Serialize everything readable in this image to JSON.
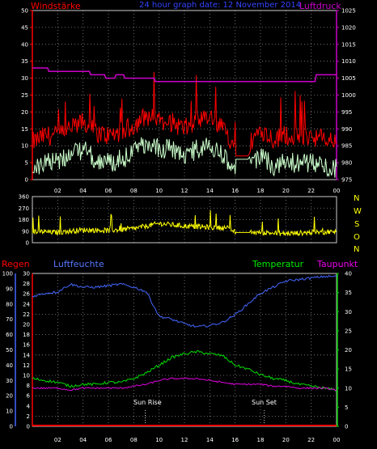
{
  "header": {
    "wind_label": "Windstärke",
    "title": "24 hour graph date: 12 November 2014",
    "pressure_label": "Luftdruck"
  },
  "bottom_labels": {
    "rain": "Regen",
    "humidity": "Luftfeuchte",
    "temperature": "Temperatur",
    "dewpoint": "Taupunkt"
  },
  "annotations": {
    "sunrise": "Sun Rise",
    "sunset": "Sun Set"
  },
  "compass": [
    "N",
    "W",
    "S",
    "O",
    "N"
  ],
  "colors": {
    "wind": "#ff0000",
    "gust": "#ccffcc",
    "pressure": "#cc00cc",
    "direction": "#ffff00",
    "rain": "#ff0000",
    "humidity": "#4466ff",
    "temperature": "#00dd00",
    "dewpoint": "#dd00dd",
    "grid": "#888888"
  },
  "chart_data": [
    {
      "type": "line",
      "name": "wind-pressure",
      "x_ticks": [
        "02",
        "04",
        "06",
        "08",
        "10",
        "12",
        "14",
        "16",
        "18",
        "20",
        "22",
        "00"
      ],
      "xlim": [
        0,
        24
      ],
      "y_left": {
        "label": "Windstärke",
        "ticks": [
          0,
          5,
          10,
          15,
          20,
          25,
          30,
          35,
          40,
          45,
          50
        ],
        "range": [
          0,
          50
        ]
      },
      "y_right": {
        "label": "Luftdruck",
        "ticks": [
          975,
          980,
          985,
          990,
          995,
          1000,
          1005,
          1010,
          1015,
          1020,
          1025
        ],
        "range": [
          975,
          1025
        ]
      },
      "series": [
        {
          "name": "Windstärke",
          "hours": [
            0,
            1,
            2,
            3,
            4,
            5,
            6,
            7,
            8,
            9,
            10,
            11,
            12,
            13,
            14,
            15,
            16,
            17,
            18,
            19,
            20,
            21,
            22,
            23,
            24
          ],
          "values": [
            8,
            10,
            10,
            12,
            14,
            11,
            10,
            11,
            13,
            16,
            14,
            14,
            12,
            14,
            15,
            12,
            7,
            7,
            12,
            9,
            10,
            10,
            10,
            9,
            8
          ]
        },
        {
          "name": "Luftdruck",
          "hours": [
            0,
            1.2,
            1.3,
            4.5,
            4.6,
            5.7,
            5.8,
            6.5,
            6.6,
            7.2,
            7.3,
            9.6,
            9.7,
            22.3,
            22.4,
            24
          ],
          "values": [
            1008,
            1008,
            1007,
            1007,
            1006,
            1006,
            1005,
            1005,
            1006,
            1006,
            1005,
            1005,
            1004,
            1004,
            1006,
            1006
          ]
        }
      ]
    },
    {
      "type": "line",
      "name": "wind-direction",
      "xlim": [
        0,
        24
      ],
      "y_left": {
        "ticks": [
          0,
          90,
          180,
          270,
          360
        ],
        "range": [
          0,
          360
        ]
      },
      "series": [
        {
          "name": "Windrichtung",
          "hours": [
            0,
            2,
            4,
            6,
            8,
            10,
            12,
            14,
            15.5,
            16,
            18,
            20,
            22,
            24
          ],
          "values": [
            90,
            80,
            100,
            95,
            110,
            150,
            130,
            120,
            115,
            80,
            80,
            70,
            80,
            85
          ]
        }
      ]
    },
    {
      "type": "line",
      "name": "temperature-humidity",
      "xlim": [
        0,
        24
      ],
      "y_humidity": {
        "label": "Luftfeuchte",
        "ticks": [
          0,
          10,
          20,
          30,
          40,
          50,
          60,
          70,
          80,
          90,
          100
        ],
        "range": [
          0,
          100
        ]
      },
      "y_rain": {
        "label": "Regen",
        "ticks": [
          0,
          2,
          4,
          6,
          8,
          10,
          12,
          14,
          16,
          18,
          20,
          22,
          24,
          26,
          28,
          30
        ],
        "range": [
          0,
          30
        ]
      },
      "y_temp": {
        "label": "Temperatur",
        "ticks": [
          0,
          5,
          10,
          15,
          20,
          25,
          30,
          35,
          40
        ],
        "range": [
          0,
          40
        ]
      },
      "series": [
        {
          "name": "Luftfeuchte",
          "hours": [
            0,
            1,
            2,
            3,
            4,
            5,
            6,
            7,
            8,
            9,
            10,
            11,
            12,
            13,
            14,
            15,
            16,
            17,
            18,
            19,
            20,
            21,
            22,
            23,
            24
          ],
          "values": [
            85,
            87,
            88,
            93,
            91,
            91,
            92,
            93,
            91,
            88,
            72,
            70,
            67,
            65,
            66,
            68,
            73,
            80,
            87,
            91,
            95,
            96,
            97,
            98,
            98
          ]
        },
        {
          "name": "Temperatur",
          "hours": [
            0,
            1,
            2,
            3,
            4,
            5,
            6,
            7,
            8,
            9,
            10,
            11,
            12,
            13,
            14,
            15,
            16,
            17,
            18,
            19,
            20,
            21,
            22,
            23,
            24
          ],
          "values": [
            12.5,
            12,
            11.5,
            10.5,
            11,
            11,
            11.5,
            11.5,
            12.5,
            14,
            16,
            18,
            19,
            19.5,
            19,
            18.5,
            16,
            15,
            13.5,
            12.5,
            12,
            11,
            10.5,
            10,
            9.5
          ]
        },
        {
          "name": "Taupunkt",
          "hours": [
            0,
            1,
            2,
            3,
            4,
            5,
            6,
            7,
            8,
            9,
            10,
            11,
            12,
            13,
            14,
            15,
            16,
            17,
            18,
            19,
            20,
            21,
            22,
            23,
            24
          ],
          "values": [
            10,
            10,
            10,
            9.5,
            10,
            10,
            10,
            10,
            10.5,
            11,
            12,
            12.5,
            12.5,
            12.5,
            12,
            11.5,
            11,
            11,
            11,
            10.5,
            10.5,
            10,
            10,
            10,
            9.5
          ]
        },
        {
          "name": "Regen",
          "hours": [
            0,
            24
          ],
          "values": [
            0,
            0
          ]
        }
      ],
      "events": [
        {
          "label": "Sun Rise",
          "hour": 8.9
        },
        {
          "label": "Sun Set",
          "hour": 18.3
        }
      ]
    }
  ]
}
